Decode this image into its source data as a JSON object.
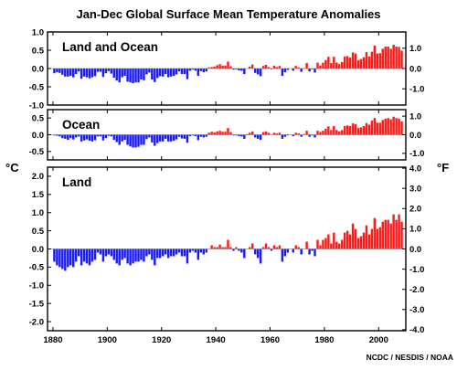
{
  "title": "Jan-Dec Global Surface Mean Temperature Anomalies",
  "left_unit": "°C",
  "right_unit": "°F",
  "credit": "NCDC / NESDIS / NOAA",
  "colors": {
    "positive": "#ff1a1a",
    "negative": "#1a1aff",
    "frame": "#000000",
    "background": "#ffffff"
  },
  "chart_data": [
    {
      "type": "bar",
      "title": "Land and Ocean",
      "x_ticks": [
        1880,
        1900,
        1920,
        1940,
        1960,
        1980,
        2000
      ],
      "xlim": [
        1878,
        2010
      ],
      "ylim": [
        -1.0,
        1.0
      ],
      "y_ticks_c": [
        1.0,
        0.5,
        0.0,
        -0.5,
        -1.0
      ],
      "y_ticks_f": [
        1.0,
        0.0,
        -1.0
      ],
      "x_labels_shown": false,
      "series": [
        {
          "x": [
            1880,
            1881,
            1882,
            1883,
            1884,
            1885,
            1886,
            1887,
            1888,
            1889,
            1890,
            1891,
            1892,
            1893,
            1894,
            1895,
            1896,
            1897,
            1898,
            1899,
            1900,
            1901,
            1902,
            1903,
            1904,
            1905,
            1906,
            1907,
            1908,
            1909,
            1910,
            1911,
            1912,
            1913,
            1914,
            1915,
            1916,
            1917,
            1918,
            1919,
            1920,
            1921,
            1922,
            1923,
            1924,
            1925,
            1926,
            1927,
            1928,
            1929,
            1930,
            1931,
            1932,
            1933,
            1934,
            1935,
            1936,
            1937,
            1938,
            1939,
            1940,
            1941,
            1942,
            1943,
            1944,
            1945,
            1946,
            1947,
            1948,
            1949,
            1950,
            1951,
            1952,
            1953,
            1954,
            1955,
            1956,
            1957,
            1958,
            1959,
            1960,
            1961,
            1962,
            1963,
            1964,
            1965,
            1966,
            1967,
            1968,
            1969,
            1970,
            1971,
            1972,
            1973,
            1974,
            1975,
            1976,
            1977,
            1978,
            1979,
            1980,
            1981,
            1982,
            1983,
            1984,
            1985,
            1986,
            1987,
            1988,
            1989,
            1990,
            1991,
            1992,
            1993,
            1994,
            1995,
            1996,
            1997,
            1998,
            1999,
            2000,
            2001,
            2002,
            2003,
            2004,
            2005,
            2006,
            2007,
            2008
          ],
          "values": [
            -0.13,
            -0.1,
            -0.12,
            -0.17,
            -0.22,
            -0.22,
            -0.2,
            -0.24,
            -0.15,
            -0.08,
            -0.28,
            -0.22,
            -0.24,
            -0.27,
            -0.24,
            -0.21,
            -0.09,
            -0.09,
            -0.23,
            -0.13,
            -0.07,
            -0.14,
            -0.25,
            -0.33,
            -0.38,
            -0.24,
            -0.2,
            -0.36,
            -0.38,
            -0.4,
            -0.38,
            -0.38,
            -0.3,
            -0.32,
            -0.16,
            -0.11,
            -0.3,
            -0.37,
            -0.26,
            -0.21,
            -0.22,
            -0.15,
            -0.24,
            -0.22,
            -0.2,
            -0.16,
            -0.08,
            -0.15,
            -0.15,
            -0.29,
            -0.06,
            -0.03,
            -0.06,
            -0.2,
            -0.07,
            -0.1,
            -0.08,
            0.03,
            0.04,
            0.05,
            0.09,
            0.12,
            0.08,
            0.08,
            0.19,
            0.06,
            -0.03,
            -0.02,
            -0.05,
            -0.06,
            -0.15,
            0.0,
            0.05,
            0.11,
            -0.12,
            -0.16,
            -0.21,
            0.07,
            0.1,
            0.04,
            -0.02,
            0.08,
            0.04,
            0.07,
            -0.2,
            -0.1,
            -0.04,
            0.0,
            -0.06,
            0.07,
            0.03,
            -0.09,
            0.01,
            0.15,
            -0.08,
            -0.02,
            -0.11,
            0.16,
            0.08,
            0.16,
            0.23,
            0.32,
            0.15,
            0.32,
            0.16,
            0.12,
            0.18,
            0.33,
            0.34,
            0.3,
            0.44,
            0.41,
            0.23,
            0.26,
            0.31,
            0.45,
            0.33,
            0.46,
            0.63,
            0.41,
            0.42,
            0.54,
            0.6,
            0.6,
            0.54,
            0.65,
            0.6,
            0.59,
            0.49
          ]
        }
      ]
    },
    {
      "type": "bar",
      "title": "Ocean",
      "x_ticks": [
        1880,
        1900,
        1920,
        1940,
        1960,
        1980,
        2000
      ],
      "xlim": [
        1878,
        2010
      ],
      "ylim": [
        -0.75,
        0.75
      ],
      "y_ticks_c": [
        0.5,
        0.0,
        -0.5
      ],
      "y_ticks_f": [
        1.0,
        0.0,
        -1.0
      ],
      "x_labels_shown": false,
      "series": [
        {
          "x": [
            1880,
            1881,
            1882,
            1883,
            1884,
            1885,
            1886,
            1887,
            1888,
            1889,
            1890,
            1891,
            1892,
            1893,
            1894,
            1895,
            1896,
            1897,
            1898,
            1899,
            1900,
            1901,
            1902,
            1903,
            1904,
            1905,
            1906,
            1907,
            1908,
            1909,
            1910,
            1911,
            1912,
            1913,
            1914,
            1915,
            1916,
            1917,
            1918,
            1919,
            1920,
            1921,
            1922,
            1923,
            1924,
            1925,
            1926,
            1927,
            1928,
            1929,
            1930,
            1931,
            1932,
            1933,
            1934,
            1935,
            1936,
            1937,
            1938,
            1939,
            1940,
            1941,
            1942,
            1943,
            1944,
            1945,
            1946,
            1947,
            1948,
            1949,
            1950,
            1951,
            1952,
            1953,
            1954,
            1955,
            1956,
            1957,
            1958,
            1959,
            1960,
            1961,
            1962,
            1963,
            1964,
            1965,
            1966,
            1967,
            1968,
            1969,
            1970,
            1971,
            1972,
            1973,
            1974,
            1975,
            1976,
            1977,
            1978,
            1979,
            1980,
            1981,
            1982,
            1983,
            1984,
            1985,
            1986,
            1987,
            1988,
            1989,
            1990,
            1991,
            1992,
            1993,
            1994,
            1995,
            1996,
            1997,
            1998,
            1999,
            2000,
            2001,
            2002,
            2003,
            2004,
            2005,
            2006,
            2007,
            2008
          ],
          "values": [
            -0.02,
            -0.03,
            -0.05,
            -0.1,
            -0.12,
            -0.15,
            -0.1,
            -0.14,
            -0.08,
            -0.05,
            -0.2,
            -0.17,
            -0.14,
            -0.18,
            -0.2,
            -0.16,
            -0.05,
            -0.05,
            -0.17,
            -0.1,
            -0.03,
            -0.05,
            -0.15,
            -0.22,
            -0.3,
            -0.2,
            -0.15,
            -0.3,
            -0.35,
            -0.38,
            -0.38,
            -0.36,
            -0.3,
            -0.3,
            -0.13,
            -0.08,
            -0.23,
            -0.33,
            -0.25,
            -0.2,
            -0.2,
            -0.12,
            -0.2,
            -0.2,
            -0.18,
            -0.14,
            -0.06,
            -0.11,
            -0.12,
            -0.24,
            -0.04,
            -0.02,
            -0.04,
            -0.16,
            -0.06,
            -0.08,
            -0.06,
            0.06,
            0.09,
            0.07,
            0.1,
            0.12,
            0.09,
            0.09,
            0.2,
            0.08,
            -0.02,
            -0.02,
            -0.04,
            -0.05,
            -0.12,
            0.02,
            0.06,
            0.1,
            -0.08,
            -0.12,
            -0.15,
            0.08,
            0.1,
            0.06,
            0.0,
            0.06,
            0.04,
            0.06,
            -0.12,
            -0.06,
            -0.02,
            0.0,
            -0.04,
            0.06,
            0.04,
            -0.06,
            0.02,
            0.12,
            -0.06,
            -0.02,
            -0.08,
            0.12,
            0.08,
            0.12,
            0.18,
            0.25,
            0.14,
            0.26,
            0.14,
            0.1,
            0.14,
            0.26,
            0.28,
            0.26,
            0.34,
            0.32,
            0.2,
            0.22,
            0.26,
            0.35,
            0.3,
            0.42,
            0.5,
            0.36,
            0.36,
            0.44,
            0.48,
            0.5,
            0.46,
            0.54,
            0.5,
            0.48,
            0.4
          ]
        }
      ]
    },
    {
      "type": "bar",
      "title": "Land",
      "x_ticks": [
        1880,
        1900,
        1920,
        1940,
        1960,
        1980,
        2000
      ],
      "xlim": [
        1878,
        2010
      ],
      "ylim": [
        -2.25,
        2.25
      ],
      "y_ticks_c": [
        2.0,
        1.5,
        1.0,
        0.5,
        0.0,
        -0.5,
        -1.0,
        -1.5,
        -2.0
      ],
      "y_ticks_f": [
        4.0,
        3.0,
        2.0,
        1.0,
        0.0,
        -1.0,
        -2.0,
        -3.0,
        -4.0
      ],
      "x_labels_shown": true,
      "series": [
        {
          "x": [
            1880,
            1881,
            1882,
            1883,
            1884,
            1885,
            1886,
            1887,
            1888,
            1889,
            1890,
            1891,
            1892,
            1893,
            1894,
            1895,
            1896,
            1897,
            1898,
            1899,
            1900,
            1901,
            1902,
            1903,
            1904,
            1905,
            1906,
            1907,
            1908,
            1909,
            1910,
            1911,
            1912,
            1913,
            1914,
            1915,
            1916,
            1917,
            1918,
            1919,
            1920,
            1921,
            1922,
            1923,
            1924,
            1925,
            1926,
            1927,
            1928,
            1929,
            1930,
            1931,
            1932,
            1933,
            1934,
            1935,
            1936,
            1937,
            1938,
            1939,
            1940,
            1941,
            1942,
            1943,
            1944,
            1945,
            1946,
            1947,
            1948,
            1949,
            1950,
            1951,
            1952,
            1953,
            1954,
            1955,
            1956,
            1957,
            1958,
            1959,
            1960,
            1961,
            1962,
            1963,
            1964,
            1965,
            1966,
            1967,
            1968,
            1969,
            1970,
            1971,
            1972,
            1973,
            1974,
            1975,
            1976,
            1977,
            1978,
            1979,
            1980,
            1981,
            1982,
            1983,
            1984,
            1985,
            1986,
            1987,
            1988,
            1989,
            1990,
            1991,
            1992,
            1993,
            1994,
            1995,
            1996,
            1997,
            1998,
            1999,
            2000,
            2001,
            2002,
            2003,
            2004,
            2005,
            2006,
            2007,
            2008
          ],
          "values": [
            -0.35,
            -0.45,
            -0.5,
            -0.55,
            -0.6,
            -0.5,
            -0.45,
            -0.5,
            -0.35,
            -0.2,
            -0.45,
            -0.35,
            -0.4,
            -0.45,
            -0.35,
            -0.3,
            -0.1,
            -0.15,
            -0.35,
            -0.2,
            -0.15,
            -0.2,
            -0.3,
            -0.4,
            -0.45,
            -0.3,
            -0.25,
            -0.4,
            -0.45,
            -0.4,
            -0.35,
            -0.35,
            -0.3,
            -0.35,
            -0.2,
            -0.15,
            -0.3,
            -0.45,
            -0.25,
            -0.25,
            -0.2,
            -0.15,
            -0.25,
            -0.2,
            -0.2,
            -0.15,
            -0.1,
            -0.2,
            -0.2,
            -0.4,
            -0.1,
            -0.05,
            -0.1,
            -0.3,
            -0.1,
            -0.15,
            -0.1,
            0.0,
            0.1,
            0.05,
            0.05,
            0.12,
            0.05,
            0.05,
            0.25,
            0.05,
            -0.05,
            0.05,
            -0.05,
            -0.1,
            -0.25,
            0.0,
            0.05,
            0.15,
            -0.15,
            -0.25,
            -0.4,
            0.05,
            0.15,
            0.05,
            -0.05,
            0.1,
            0.05,
            0.1,
            -0.35,
            -0.2,
            -0.1,
            0.0,
            -0.1,
            0.1,
            0.05,
            -0.15,
            0.0,
            0.2,
            -0.15,
            -0.05,
            -0.2,
            0.25,
            0.1,
            0.25,
            0.3,
            0.4,
            0.15,
            0.45,
            0.2,
            0.15,
            0.25,
            0.45,
            0.5,
            0.4,
            0.7,
            0.55,
            0.3,
            0.35,
            0.45,
            0.65,
            0.4,
            0.55,
            0.85,
            0.55,
            0.6,
            0.75,
            0.8,
            0.8,
            0.7,
            0.95,
            0.8,
            0.95,
            0.75
          ]
        }
      ]
    }
  ]
}
